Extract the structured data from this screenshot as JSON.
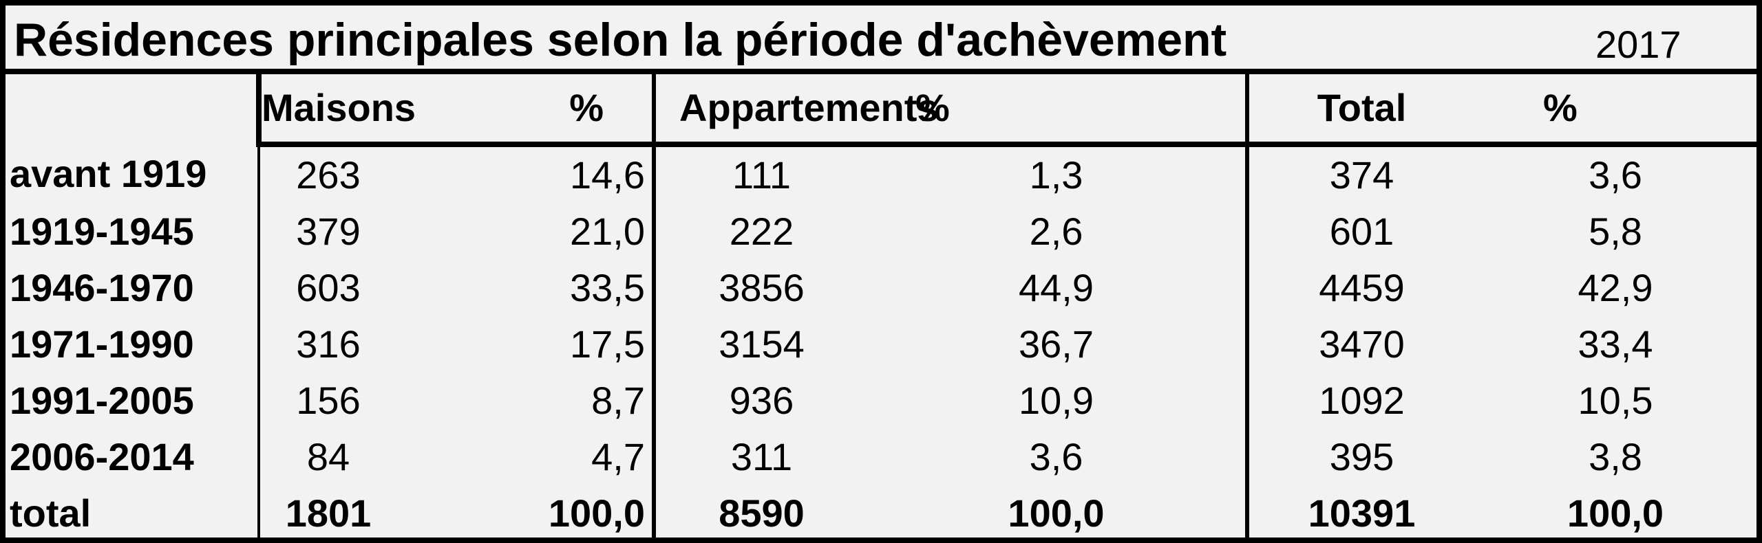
{
  "title": "Résidences principales selon la période d'achèvement",
  "year": "2017",
  "headers": [
    "",
    "Maisons",
    "%",
    "Appartements",
    "%",
    "Total",
    "%"
  ],
  "rows": [
    {
      "label": "avant 1919",
      "maisons": "263",
      "maisons_pct": "14,6",
      "appartements": "111",
      "appartements_pct": "1,3",
      "total": "374",
      "total_pct": "3,6"
    },
    {
      "label": "1919-1945",
      "maisons": "379",
      "maisons_pct": "21,0",
      "appartements": "222",
      "appartements_pct": "2,6",
      "total": "601",
      "total_pct": "5,8"
    },
    {
      "label": "1946-1970",
      "maisons": "603",
      "maisons_pct": "33,5",
      "appartements": "3856",
      "appartements_pct": "44,9",
      "total": "4459",
      "total_pct": "42,9"
    },
    {
      "label": "1971-1990",
      "maisons": "316",
      "maisons_pct": "17,5",
      "appartements": "3154",
      "appartements_pct": "36,7",
      "total": "3470",
      "total_pct": "33,4"
    },
    {
      "label": "1991-2005",
      "maisons": "156",
      "maisons_pct": "8,7",
      "appartements": "936",
      "appartements_pct": "10,9",
      "total": "1092",
      "total_pct": "10,5"
    },
    {
      "label": "2006-2014",
      "maisons": "84",
      "maisons_pct": "4,7",
      "appartements": "311",
      "appartements_pct": "3,6",
      "total": "395",
      "total_pct": "3,8"
    }
  ],
  "total_row": {
    "label": "total",
    "maisons": "1801",
    "maisons_pct": "100,0",
    "appartements": "8590",
    "appartements_pct": "100,0",
    "total": "10391",
    "total_pct": "100,0"
  }
}
